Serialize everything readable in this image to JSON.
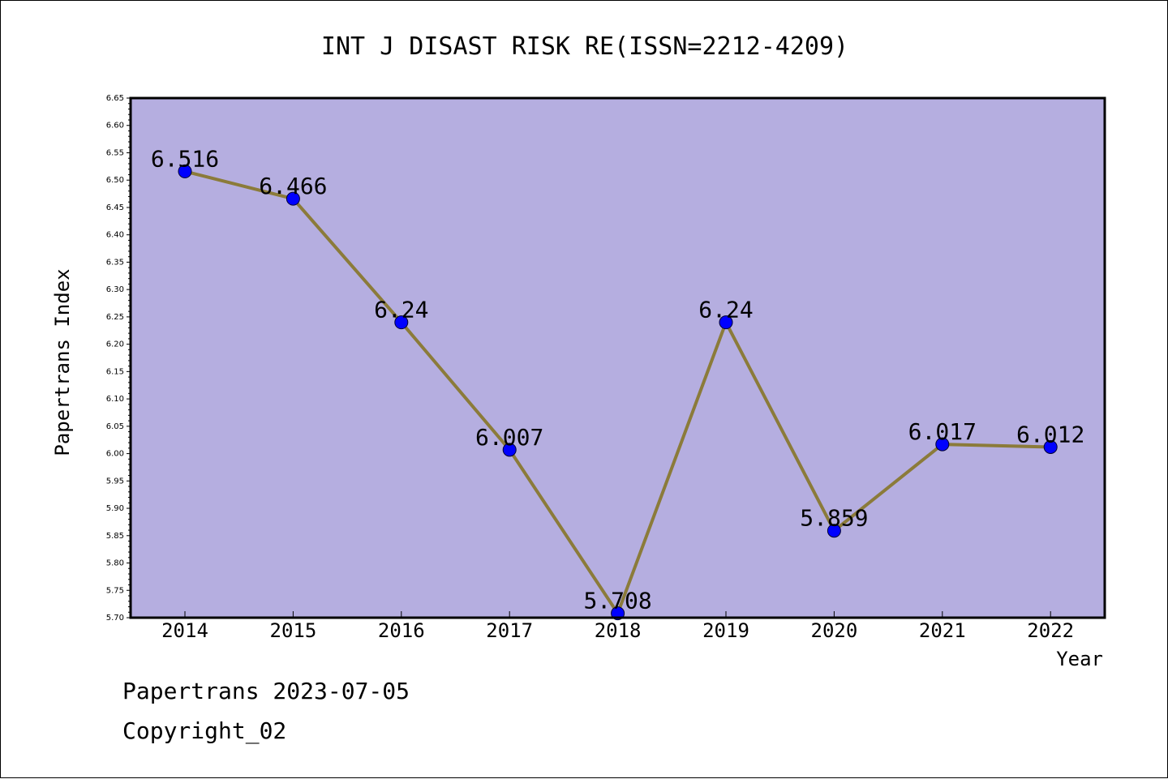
{
  "chart_data": {
    "type": "line",
    "title": "INT J DISAST RISK RE(ISSN=2212-4209)",
    "xlabel": "Year",
    "ylabel": "Papertrans Index",
    "categories": [
      "2014",
      "2015",
      "2016",
      "2017",
      "2018",
      "2019",
      "2020",
      "2021",
      "2022"
    ],
    "values": [
      6.516,
      6.466,
      6.24,
      6.007,
      5.708,
      6.24,
      5.859,
      6.017,
      6.012
    ],
    "data_labels": [
      "6.516",
      "6.466",
      "6.24",
      "6.007",
      "5.708",
      "6.24",
      "5.859",
      "6.017",
      "6.012"
    ],
    "ylim": [
      5.7,
      6.65
    ],
    "yticks": [
      "5.70",
      "5.75",
      "5.80",
      "5.85",
      "5.90",
      "5.95",
      "6.00",
      "6.05",
      "6.10",
      "6.15",
      "6.20",
      "6.25",
      "6.30",
      "6.35",
      "6.40",
      "6.45",
      "6.50",
      "6.55",
      "6.60",
      "6.65"
    ],
    "grid": false,
    "colors": {
      "plot_background": "#b5aee0",
      "line": "#8b7b3a",
      "marker": "#0000ff"
    }
  },
  "footer": {
    "source_line": "Papertrans 2023-07-05",
    "copyright_line": "Copyright_02"
  }
}
